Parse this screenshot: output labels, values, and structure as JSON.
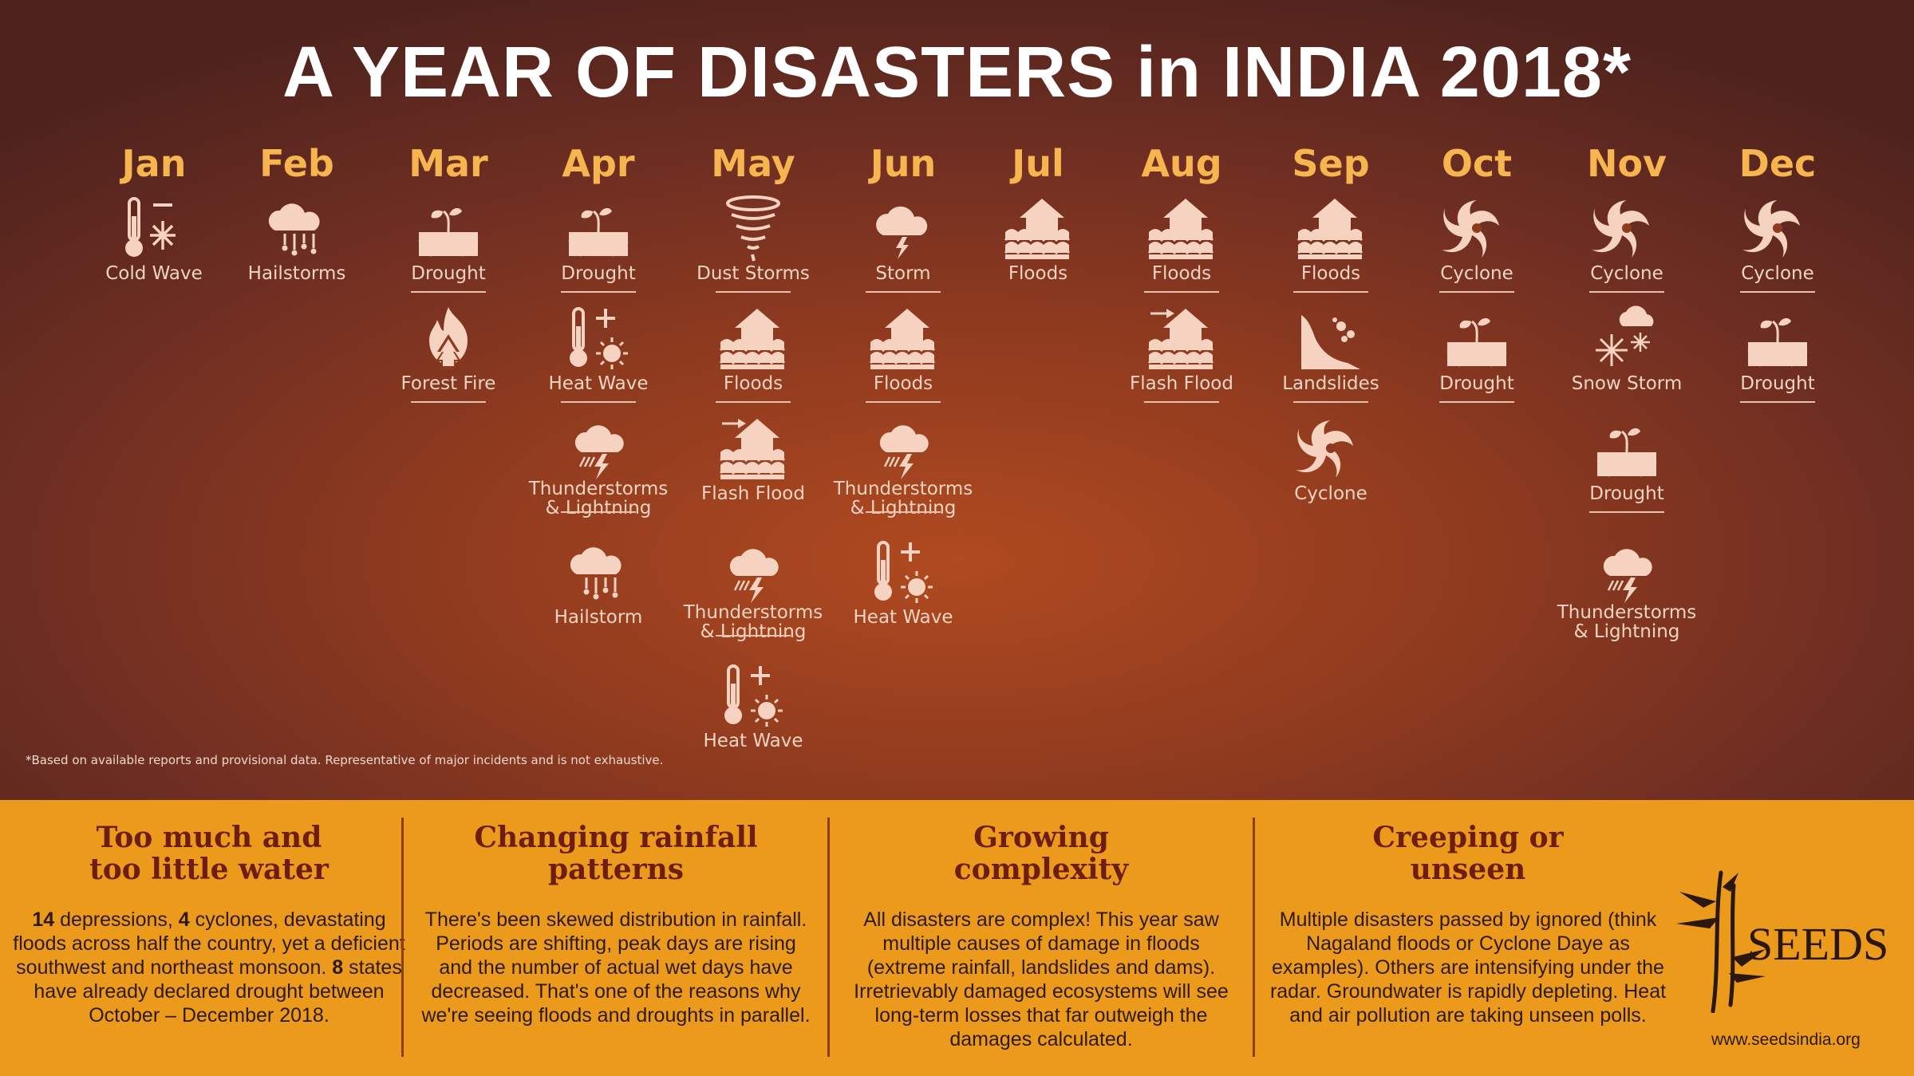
{
  "title": "A YEAR OF DISASTERS in INDIA 2018*",
  "footnote": "*Based on available reports and provisional data. Representative of major incidents and is not exhaustive.",
  "months": {
    "jan": {
      "name": "Jan",
      "events": [
        "Cold Wave"
      ]
    },
    "feb": {
      "name": "Feb",
      "events": [
        "Hailstorms"
      ]
    },
    "mar": {
      "name": "Mar",
      "events": [
        "Drought",
        "Forest Fire"
      ]
    },
    "apr": {
      "name": "Apr",
      "events": [
        "Drought",
        "Heat Wave",
        "Thunderstorms & Lightning",
        "Hailstorm"
      ]
    },
    "may": {
      "name": "May",
      "events": [
        "Dust Storms",
        "Floods",
        "Flash Flood",
        "Thunderstorms & Lightning",
        "Heat Wave"
      ]
    },
    "jun": {
      "name": "Jun",
      "events": [
        "Storm",
        "Floods",
        "Thunderstorms & Lightning",
        "Heat Wave"
      ]
    },
    "jul": {
      "name": "Jul",
      "events": [
        "Floods"
      ]
    },
    "aug": {
      "name": "Aug",
      "events": [
        "Floods",
        "Flash Flood"
      ]
    },
    "sep": {
      "name": "Sep",
      "events": [
        "Floods",
        "Landslides",
        "Cyclone"
      ]
    },
    "oct": {
      "name": "Oct",
      "events": [
        "Cyclone",
        "Drought"
      ]
    },
    "nov": {
      "name": "Nov",
      "events": [
        "Cyclone",
        "Snow Storm",
        "Drought",
        "Thunderstorms & Lightning"
      ]
    },
    "dec": {
      "name": "Dec",
      "events": [
        "Cyclone",
        "Drought"
      ]
    }
  },
  "thunder": {
    "line1": "Thunderstorms",
    "line2": "& Lightning"
  },
  "panels": [
    {
      "title1": "Too much and",
      "title2": "too little water",
      "n1": "14",
      "t1": " depressions, ",
      "n2": "4",
      "t2": " cyclones, devastating floods across half the country, yet a deficient southwest and northeast monsoon. ",
      "n3": "8",
      "t3": " states have already declared drought between October – December 2018."
    },
    {
      "title1": "Changing rainfall",
      "title2": "patterns",
      "body": "There's been skewed distribution in rainfall. Periods are shifting, peak days are rising and the number of actual wet days have decreased. That's one of the reasons why we're seeing floods and droughts in parallel."
    },
    {
      "title1": "Growing",
      "title2": "complexity",
      "body": "All disasters are complex! This year saw multiple causes of damage in floods (extreme rainfall, landslides and dams). Irretrievably damaged ecosystems will see long-term losses that far outweigh the damages calculated."
    },
    {
      "title1": "Creeping or",
      "title2": "unseen",
      "body": "Multiple disasters passed by ignored (think Nagaland floods or Cyclone Daye as examples). Others are intensifying under the radar. Groundwater is rapidly depleting. Heat and air pollution are taking unseen polls."
    }
  ],
  "logo": {
    "name": "SEEDS",
    "url": "www.seedsindia.org"
  },
  "colors": {
    "accent": "#f6b54f",
    "panel_bg": "#eb9a1c",
    "panel_title": "#6e1d12"
  }
}
